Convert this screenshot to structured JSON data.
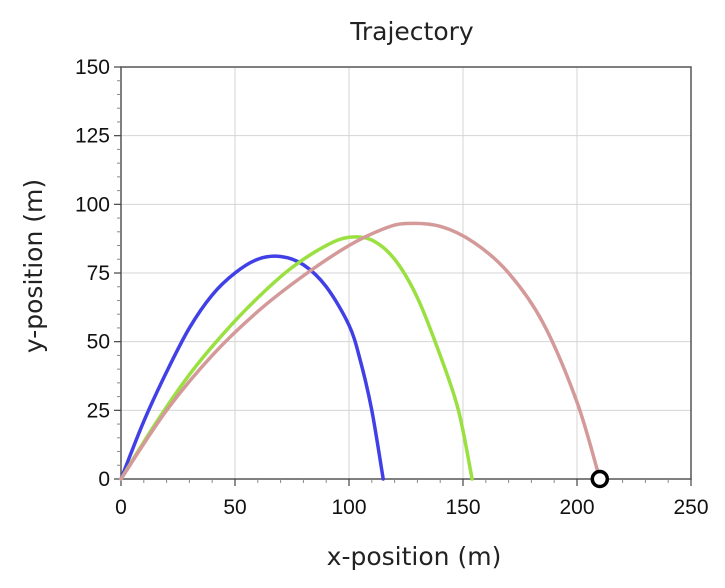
{
  "chart_data": {
    "type": "line",
    "title": "Trajectory",
    "xlabel": "x-position (m)",
    "ylabel": "y-position (m)",
    "xlim": [
      0,
      250
    ],
    "ylim": [
      0,
      150
    ],
    "x_ticks": [
      "0",
      "50",
      "100",
      "150",
      "200",
      "250"
    ],
    "y_ticks": [
      "0",
      "25",
      "50",
      "75",
      "100",
      "125",
      "150"
    ],
    "grid": true,
    "series": [
      {
        "color": "#4040e6",
        "x": [
          0,
          10,
          20,
          30,
          40,
          50,
          60,
          70,
          80,
          90,
          100,
          105,
          110,
          115
        ],
        "y": [
          0,
          21,
          39,
          55,
          67,
          75,
          80,
          81,
          78,
          70,
          56,
          43,
          25,
          0
        ]
      },
      {
        "color": "#99e040",
        "x": [
          0,
          15,
          30,
          45,
          60,
          75,
          90,
          100,
          110,
          120,
          130,
          140,
          148,
          154
        ],
        "y": [
          0,
          20,
          38,
          53,
          66,
          77,
          85,
          88,
          87,
          80,
          66,
          45,
          25,
          0
        ]
      },
      {
        "color": "#d49a9a",
        "x": [
          0,
          20,
          40,
          60,
          80,
          100,
          115,
          125,
          140,
          155,
          170,
          185,
          200,
          210
        ],
        "y": [
          0,
          25,
          45,
          61,
          74,
          85,
          91,
          93,
          92,
          86,
          75,
          57,
          28,
          0
        ]
      }
    ],
    "marker": {
      "x": 210,
      "y": 0
    }
  }
}
